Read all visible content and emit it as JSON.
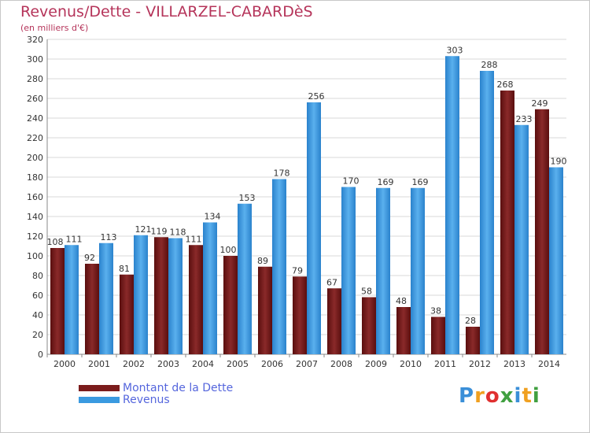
{
  "header": {
    "title": "Revenus/Dette - VILLARZEL-CABARDèS",
    "subtitle": "(en milliers d'€)"
  },
  "legend": {
    "items": [
      {
        "label": "Montant de la Dette",
        "color": "#7b1c1c"
      },
      {
        "label": "Revenus",
        "color": "#3a9ae0"
      }
    ]
  },
  "logo": {
    "text": "Proxiti",
    "letters": [
      "P",
      "r",
      "o",
      "x",
      "i",
      "t",
      "i"
    ],
    "colors": [
      "#3a8fd8",
      "#f0a020",
      "#e03030",
      "#40a040",
      "#3a8fd8",
      "#f0a020",
      "#40a040"
    ]
  },
  "chart_data": {
    "type": "bar",
    "title": "Revenus/Dette - VILLARZEL-CABARDèS",
    "subtitle": "(en milliers d'€)",
    "categories": [
      "2000",
      "2001",
      "2002",
      "2003",
      "2004",
      "2005",
      "2006",
      "2007",
      "2008",
      "2009",
      "2010",
      "2011",
      "2012",
      "2013",
      "2014"
    ],
    "series": [
      {
        "name": "Montant de la Dette",
        "color": "#7b1c1c",
        "values": [
          108,
          92,
          81,
          119,
          111,
          100,
          89,
          79,
          67,
          58,
          48,
          38,
          28,
          268,
          249
        ]
      },
      {
        "name": "Revenus",
        "color": "#3a9ae0",
        "values": [
          111,
          113,
          121,
          118,
          134,
          153,
          178,
          256,
          170,
          169,
          169,
          303,
          288,
          233,
          190
        ]
      }
    ],
    "ylim": [
      0,
      320
    ],
    "yticks": [
      0,
      20,
      40,
      60,
      80,
      100,
      120,
      140,
      160,
      180,
      200,
      220,
      240,
      260,
      280,
      300,
      320
    ],
    "grid": true,
    "legend_position": "bottom-left"
  }
}
